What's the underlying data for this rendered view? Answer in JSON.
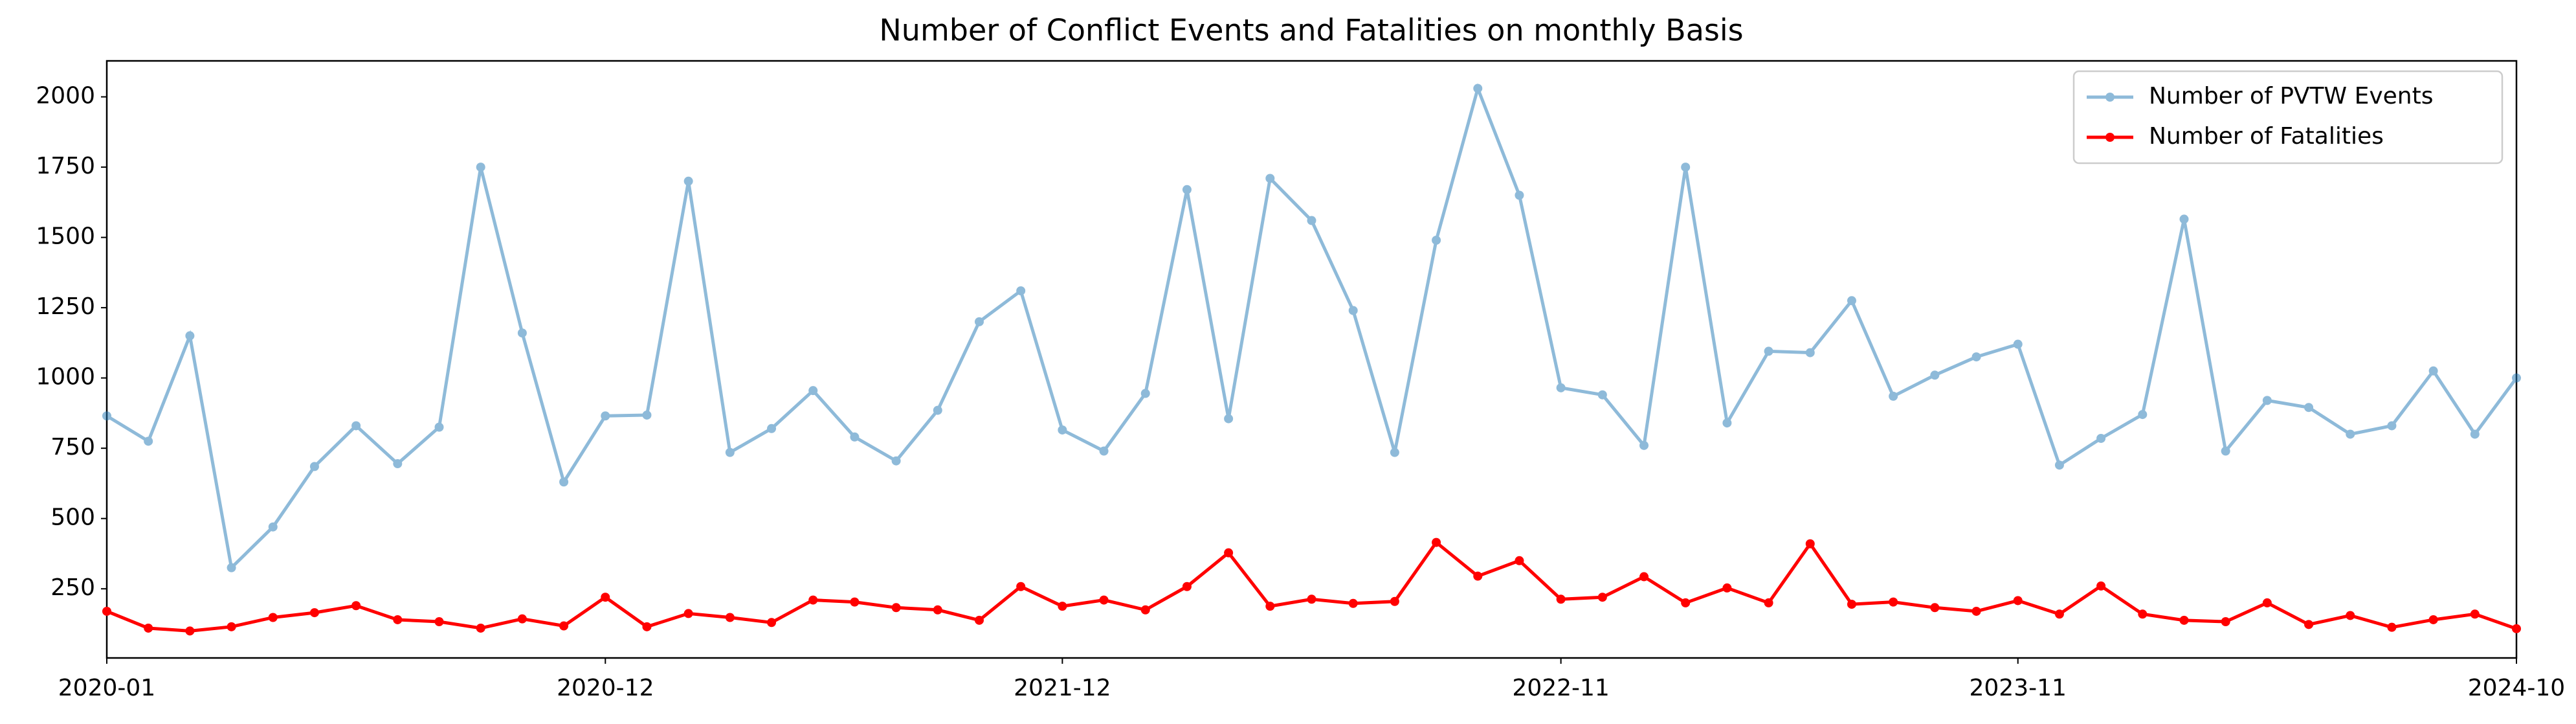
{
  "chart_data": {
    "type": "line",
    "title": "Number of Conflict Events and Fatalities on monthly Basis",
    "categories": [
      "2020-01",
      null,
      null,
      null,
      null,
      null,
      null,
      null,
      null,
      null,
      null,
      null,
      "2020-12",
      null,
      null,
      null,
      null,
      null,
      null,
      null,
      null,
      null,
      null,
      "2021-12",
      null,
      null,
      null,
      null,
      null,
      null,
      null,
      null,
      null,
      null,
      null,
      "2022-11",
      null,
      null,
      null,
      null,
      null,
      null,
      null,
      null,
      null,
      null,
      "2023-11",
      null,
      null,
      null,
      null,
      null,
      null,
      null,
      null,
      null,
      null,
      null,
      "2024-10"
    ],
    "series": [
      {
        "name": "Number of PVTW Events",
        "color": "#1f77b4",
        "alpha": 0.5,
        "values": [
          865,
          775,
          1150,
          325,
          470,
          685,
          830,
          695,
          825,
          1750,
          1160,
          630,
          865,
          868,
          1700,
          735,
          820,
          955,
          790,
          705,
          885,
          1200,
          1310,
          815,
          740,
          945,
          1670,
          855,
          1710,
          1560,
          1240,
          735,
          1490,
          2030,
          1650,
          965,
          940,
          760,
          1750,
          840,
          1095,
          1090,
          1275,
          935,
          1010,
          1075,
          1120,
          690,
          785,
          870,
          1565,
          740,
          920,
          895,
          800,
          830,
          1025,
          800,
          1000
        ]
      },
      {
        "name": "Number of Fatalities",
        "color": "#ff0000",
        "alpha": 1,
        "values": [
          170,
          110,
          100,
          115,
          148,
          165,
          190,
          140,
          133,
          110,
          143,
          118,
          220,
          115,
          162,
          148,
          130,
          210,
          203,
          183,
          175,
          138,
          258,
          188,
          210,
          175,
          258,
          378,
          188,
          213,
          198,
          205,
          415,
          295,
          350,
          213,
          220,
          293,
          200,
          253,
          200,
          410,
          195,
          203,
          183,
          170,
          208,
          160,
          260,
          160,
          138,
          133,
          200,
          123,
          155,
          113,
          140,
          160,
          108
        ]
      }
    ],
    "ylim": [
      4,
      2128
    ],
    "yticks": [
      250,
      500,
      750,
      1000,
      1250,
      1500,
      1750,
      2000
    ],
    "grid": false,
    "legend": "upper right"
  }
}
